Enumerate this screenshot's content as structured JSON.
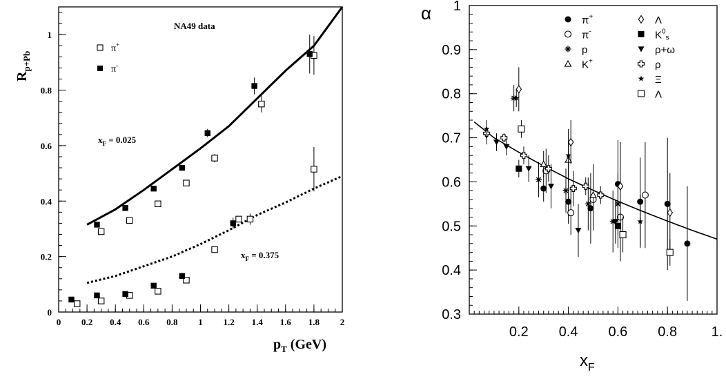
{
  "chart_data": [
    {
      "type": "scatter",
      "title": "",
      "xlabel": "p_T (GeV)",
      "ylabel": "R_p+Pb",
      "xlim": [
        0,
        2
      ],
      "ylim": [
        0,
        1.1
      ],
      "xticks": [
        "0",
        "0.2",
        "0.4",
        "0.6",
        "0.8",
        "1",
        "1.2",
        "1.4",
        "1.6",
        "1.8",
        "2"
      ],
      "yticks": [
        "0",
        "0.2",
        "0.4",
        "0.6",
        "0.8",
        "1"
      ],
      "annotations": {
        "na49": "NA49 data",
        "xf_low": "x_F = 0.025",
        "xf_high": "x_F = 0.375"
      },
      "legend_position": "top-left",
      "series": [
        {
          "name": "π+",
          "marker": "open-square",
          "points": [
            [
              0.13,
              0.03
            ],
            [
              0.3,
              0.04
            ],
            [
              0.5,
              0.06
            ],
            [
              0.7,
              0.075
            ],
            [
              0.9,
              0.115
            ],
            [
              1.1,
              0.225
            ],
            [
              1.27,
              0.335
            ],
            [
              1.35,
              0.335
            ],
            [
              0.3,
              0.29
            ],
            [
              0.5,
              0.33
            ],
            [
              0.7,
              0.39
            ],
            [
              0.9,
              0.465
            ],
            [
              1.1,
              0.555
            ],
            [
              1.43,
              0.75
            ],
            [
              1.8,
              0.515
            ],
            [
              1.8,
              0.925
            ]
          ],
          "errors": [
            0,
            0,
            0,
            0,
            0,
            0,
            0,
            0.02,
            0,
            0,
            0,
            0,
            0.015,
            0.03,
            0.08,
            0.07
          ]
        },
        {
          "name": "π-",
          "marker": "filled-square",
          "points": [
            [
              0.09,
              0.045
            ],
            [
              0.27,
              0.06
            ],
            [
              0.47,
              0.065
            ],
            [
              0.67,
              0.095
            ],
            [
              0.87,
              0.13
            ],
            [
              1.23,
              0.32
            ],
            [
              0.27,
              0.315
            ],
            [
              0.47,
              0.375
            ],
            [
              0.67,
              0.445
            ],
            [
              0.87,
              0.52
            ],
            [
              1.05,
              0.645
            ],
            [
              1.38,
              0.815
            ],
            [
              1.77,
              0.93
            ]
          ],
          "errors": [
            0,
            0,
            0,
            0,
            0,
            0.02,
            0,
            0,
            0,
            0,
            0.015,
            0.03,
            0.07
          ]
        }
      ],
      "curves": [
        {
          "style": "solid",
          "points": [
            [
              0.2,
              0.315
            ],
            [
              0.4,
              0.37
            ],
            [
              0.6,
              0.44
            ],
            [
              0.8,
              0.515
            ],
            [
              1.0,
              0.59
            ],
            [
              1.2,
              0.67
            ],
            [
              1.4,
              0.77
            ],
            [
              1.6,
              0.87
            ],
            [
              1.8,
              0.96
            ],
            [
              2.0,
              1.1
            ]
          ]
        },
        {
          "style": "dotted",
          "points": [
            [
              0.2,
              0.105
            ],
            [
              0.4,
              0.13
            ],
            [
              0.6,
              0.165
            ],
            [
              0.8,
              0.2
            ],
            [
              1.0,
              0.245
            ],
            [
              1.2,
              0.295
            ],
            [
              1.4,
              0.35
            ],
            [
              1.6,
              0.395
            ],
            [
              1.8,
              0.445
            ],
            [
              2.0,
              0.49
            ]
          ]
        }
      ]
    },
    {
      "type": "scatter",
      "title": "",
      "xlabel": "x_F",
      "ylabel": "α",
      "xlim": [
        0,
        1.0
      ],
      "ylim": [
        0.3,
        1.0
      ],
      "xticks": [
        "0.2",
        "0.4",
        "0.6",
        "0.8",
        "1."
      ],
      "yticks": [
        "0.3",
        "0.4",
        "0.5",
        "0.6",
        "0.7",
        "0.8",
        "0.9",
        "1"
      ],
      "legend_position": "top-right",
      "series": [
        {
          "name": "π+",
          "marker": "filled-circle",
          "points": [
            [
              0.3,
              0.585
            ],
            [
              0.4,
              0.555
            ],
            [
              0.49,
              0.54
            ],
            [
              0.6,
              0.595
            ],
            [
              0.69,
              0.555
            ],
            [
              0.8,
              0.55
            ],
            [
              0.88,
              0.46
            ]
          ],
          "errors": [
            0.03,
            0.05,
            0.08,
            0.1,
            0.1,
            0.15,
            0.13
          ]
        },
        {
          "name": "π-",
          "marker": "open-circle",
          "points": [
            [
              0.31,
              0.625
            ],
            [
              0.41,
              0.53
            ],
            [
              0.5,
              0.56
            ],
            [
              0.61,
              0.52
            ],
            [
              0.71,
              0.57
            ]
          ],
          "errors": [
            0.05,
            0.05,
            0.07,
            0.1,
            0.12
          ]
        },
        {
          "name": "p",
          "marker": "asterisk",
          "points": [
            [
              0.18,
              0.79
            ],
            [
              0.28,
              0.605
            ],
            [
              0.39,
              0.58
            ],
            [
              0.48,
              0.55
            ],
            [
              0.58,
              0.51
            ],
            [
              0.6,
              0.55
            ]
          ],
          "errors": [
            0.03,
            0.04,
            0.05,
            0.06,
            0.07,
            0.07
          ]
        },
        {
          "name": "K+",
          "marker": "open-triangle",
          "points": [
            [
              0.3,
              0.64
            ],
            [
              0.4,
              0.65
            ],
            [
              0.5,
              0.57
            ]
          ],
          "errors": [
            0.03,
            0.04,
            0.07
          ]
        },
        {
          "name": "Λ",
          "marker": "open-diamond",
          "points": [
            [
              0.2,
              0.81
            ],
            [
              0.41,
              0.69
            ],
            [
              0.61,
              0.59
            ],
            [
              0.81,
              0.53
            ]
          ],
          "errors": [
            0.05,
            0.05,
            0.1,
            0.09
          ]
        },
        {
          "name": "K0s",
          "marker": "filled-square",
          "points": [
            [
              0.2,
              0.63
            ],
            [
              0.6,
              0.5
            ]
          ],
          "errors": [
            0.02,
            0.05
          ]
        },
        {
          "name": "ρ+ω",
          "marker": "filled-triangle-down",
          "points": [
            [
              0.07,
              0.705
            ],
            [
              0.11,
              0.69
            ],
            [
              0.15,
              0.68
            ],
            [
              0.24,
              0.63
            ],
            [
              0.33,
              0.59
            ],
            [
              0.44,
              0.49
            ],
            [
              0.59,
              0.51
            ]
          ],
          "errors": [
            0.02,
            0.02,
            0.02,
            0.03,
            0.05,
            0.06,
            0.05
          ]
        },
        {
          "name": "ρ",
          "marker": "open-cross",
          "points": [
            [
              0.07,
              0.71
            ],
            [
              0.14,
              0.7
            ],
            [
              0.22,
              0.66
            ],
            [
              0.32,
              0.63
            ],
            [
              0.42,
              0.585
            ],
            [
              0.47,
              0.59
            ],
            [
              0.53,
              0.57
            ]
          ],
          "errors": [
            0.01,
            0.01,
            0.02,
            0.03,
            0.04,
            0.02,
            0.02
          ]
        },
        {
          "name": "Ξ",
          "marker": "star",
          "points": [
            [
              0.07,
              0.72
            ],
            [
              0.19,
              0.79
            ],
            [
              0.4,
              0.66
            ],
            [
              0.69,
              0.51
            ]
          ],
          "errors": [
            0.02,
            0.02,
            0.06,
            0.06
          ]
        },
        {
          "name": "Λ̄",
          "marker": "open-square",
          "points": [
            [
              0.21,
              0.72
            ],
            [
              0.62,
              0.48
            ],
            [
              0.81,
              0.44
            ]
          ],
          "errors": [
            0.02,
            0.04,
            0.03
          ]
        }
      ],
      "curves": [
        {
          "style": "solid",
          "points": [
            [
              0.02,
              0.736
            ],
            [
              0.1,
              0.7
            ],
            [
              0.2,
              0.667
            ],
            [
              0.3,
              0.636
            ],
            [
              0.4,
              0.607
            ],
            [
              0.5,
              0.581
            ],
            [
              0.6,
              0.556
            ],
            [
              0.7,
              0.533
            ],
            [
              0.8,
              0.511
            ],
            [
              0.9,
              0.49
            ],
            [
              1.0,
              0.47
            ]
          ]
        }
      ]
    }
  ]
}
